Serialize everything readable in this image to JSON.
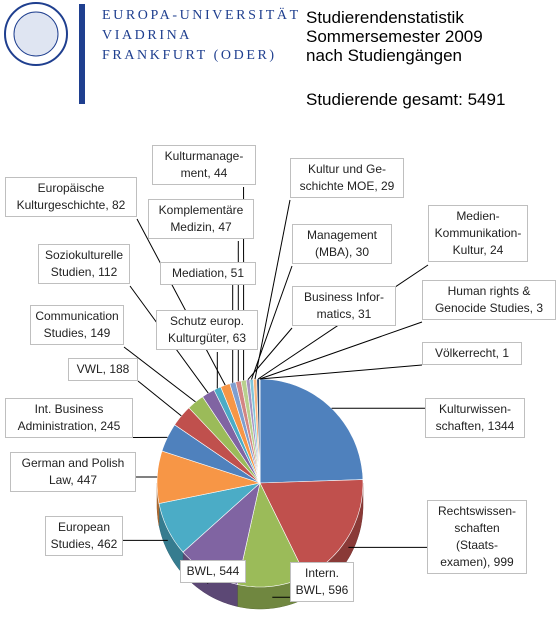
{
  "header": {
    "logo_lines": [
      "EUROPA-UNIVERSITÄT",
      "VIADRINA",
      "FRANKFURT (ODER)"
    ],
    "title_lines": [
      "Studierendenstatistik",
      "Sommersemester 2009",
      "nach Studiengängen"
    ],
    "total": "Studierende gesamt: 5491"
  },
  "chart_data": {
    "type": "pie",
    "value_labels": [
      "Kulturwissen-\nschaften, 1344",
      "Rechtswissen-\nschaften (Staats-\nexamen), 999",
      "Intern.\nBWL, 596",
      "BWL, 544",
      "European\nStudies, 462",
      "German and Polish\nLaw, 447",
      "Int. Business\nAdministration, 245",
      "VWL, 188",
      "Communication\nStudies, 149",
      "Soziokulturelle\nStudien, 112",
      "Schutz europ.\nKulturgüter, 63",
      "Europäische\nKulturgeschichte, 82",
      "Mediation, 51",
      "Komplementäre\nMedizin, 47",
      "Kulturmanage-\nment, 44",
      "Business Infor-\nmatics, 31",
      "Management\n(MBA), 30",
      "Kultur und Ge-\nschichte MOE, 29",
      "Medien-\nKommunikation-\nKultur, 24",
      "Human rights &\nGenocide Studies, 3",
      "Völkerrecht, 1"
    ],
    "values": [
      1344,
      999,
      596,
      544,
      462,
      447,
      245,
      188,
      149,
      112,
      63,
      82,
      51,
      47,
      44,
      31,
      30,
      29,
      24,
      3,
      1
    ],
    "colors": [
      "#4f81bd",
      "#c0504d",
      "#9bbb59",
      "#8064a2",
      "#4bacc6",
      "#f79646",
      "#4f81bd",
      "#c0504d",
      "#9bbb59",
      "#8064a2",
      "#4bacc6",
      "#f79646",
      "#7f9fcf",
      "#d38583",
      "#b9d08e",
      "#a692c0",
      "#82c6d9",
      "#fab57f",
      "#2c4d75",
      "#772c2a",
      "#5f7530"
    ]
  }
}
